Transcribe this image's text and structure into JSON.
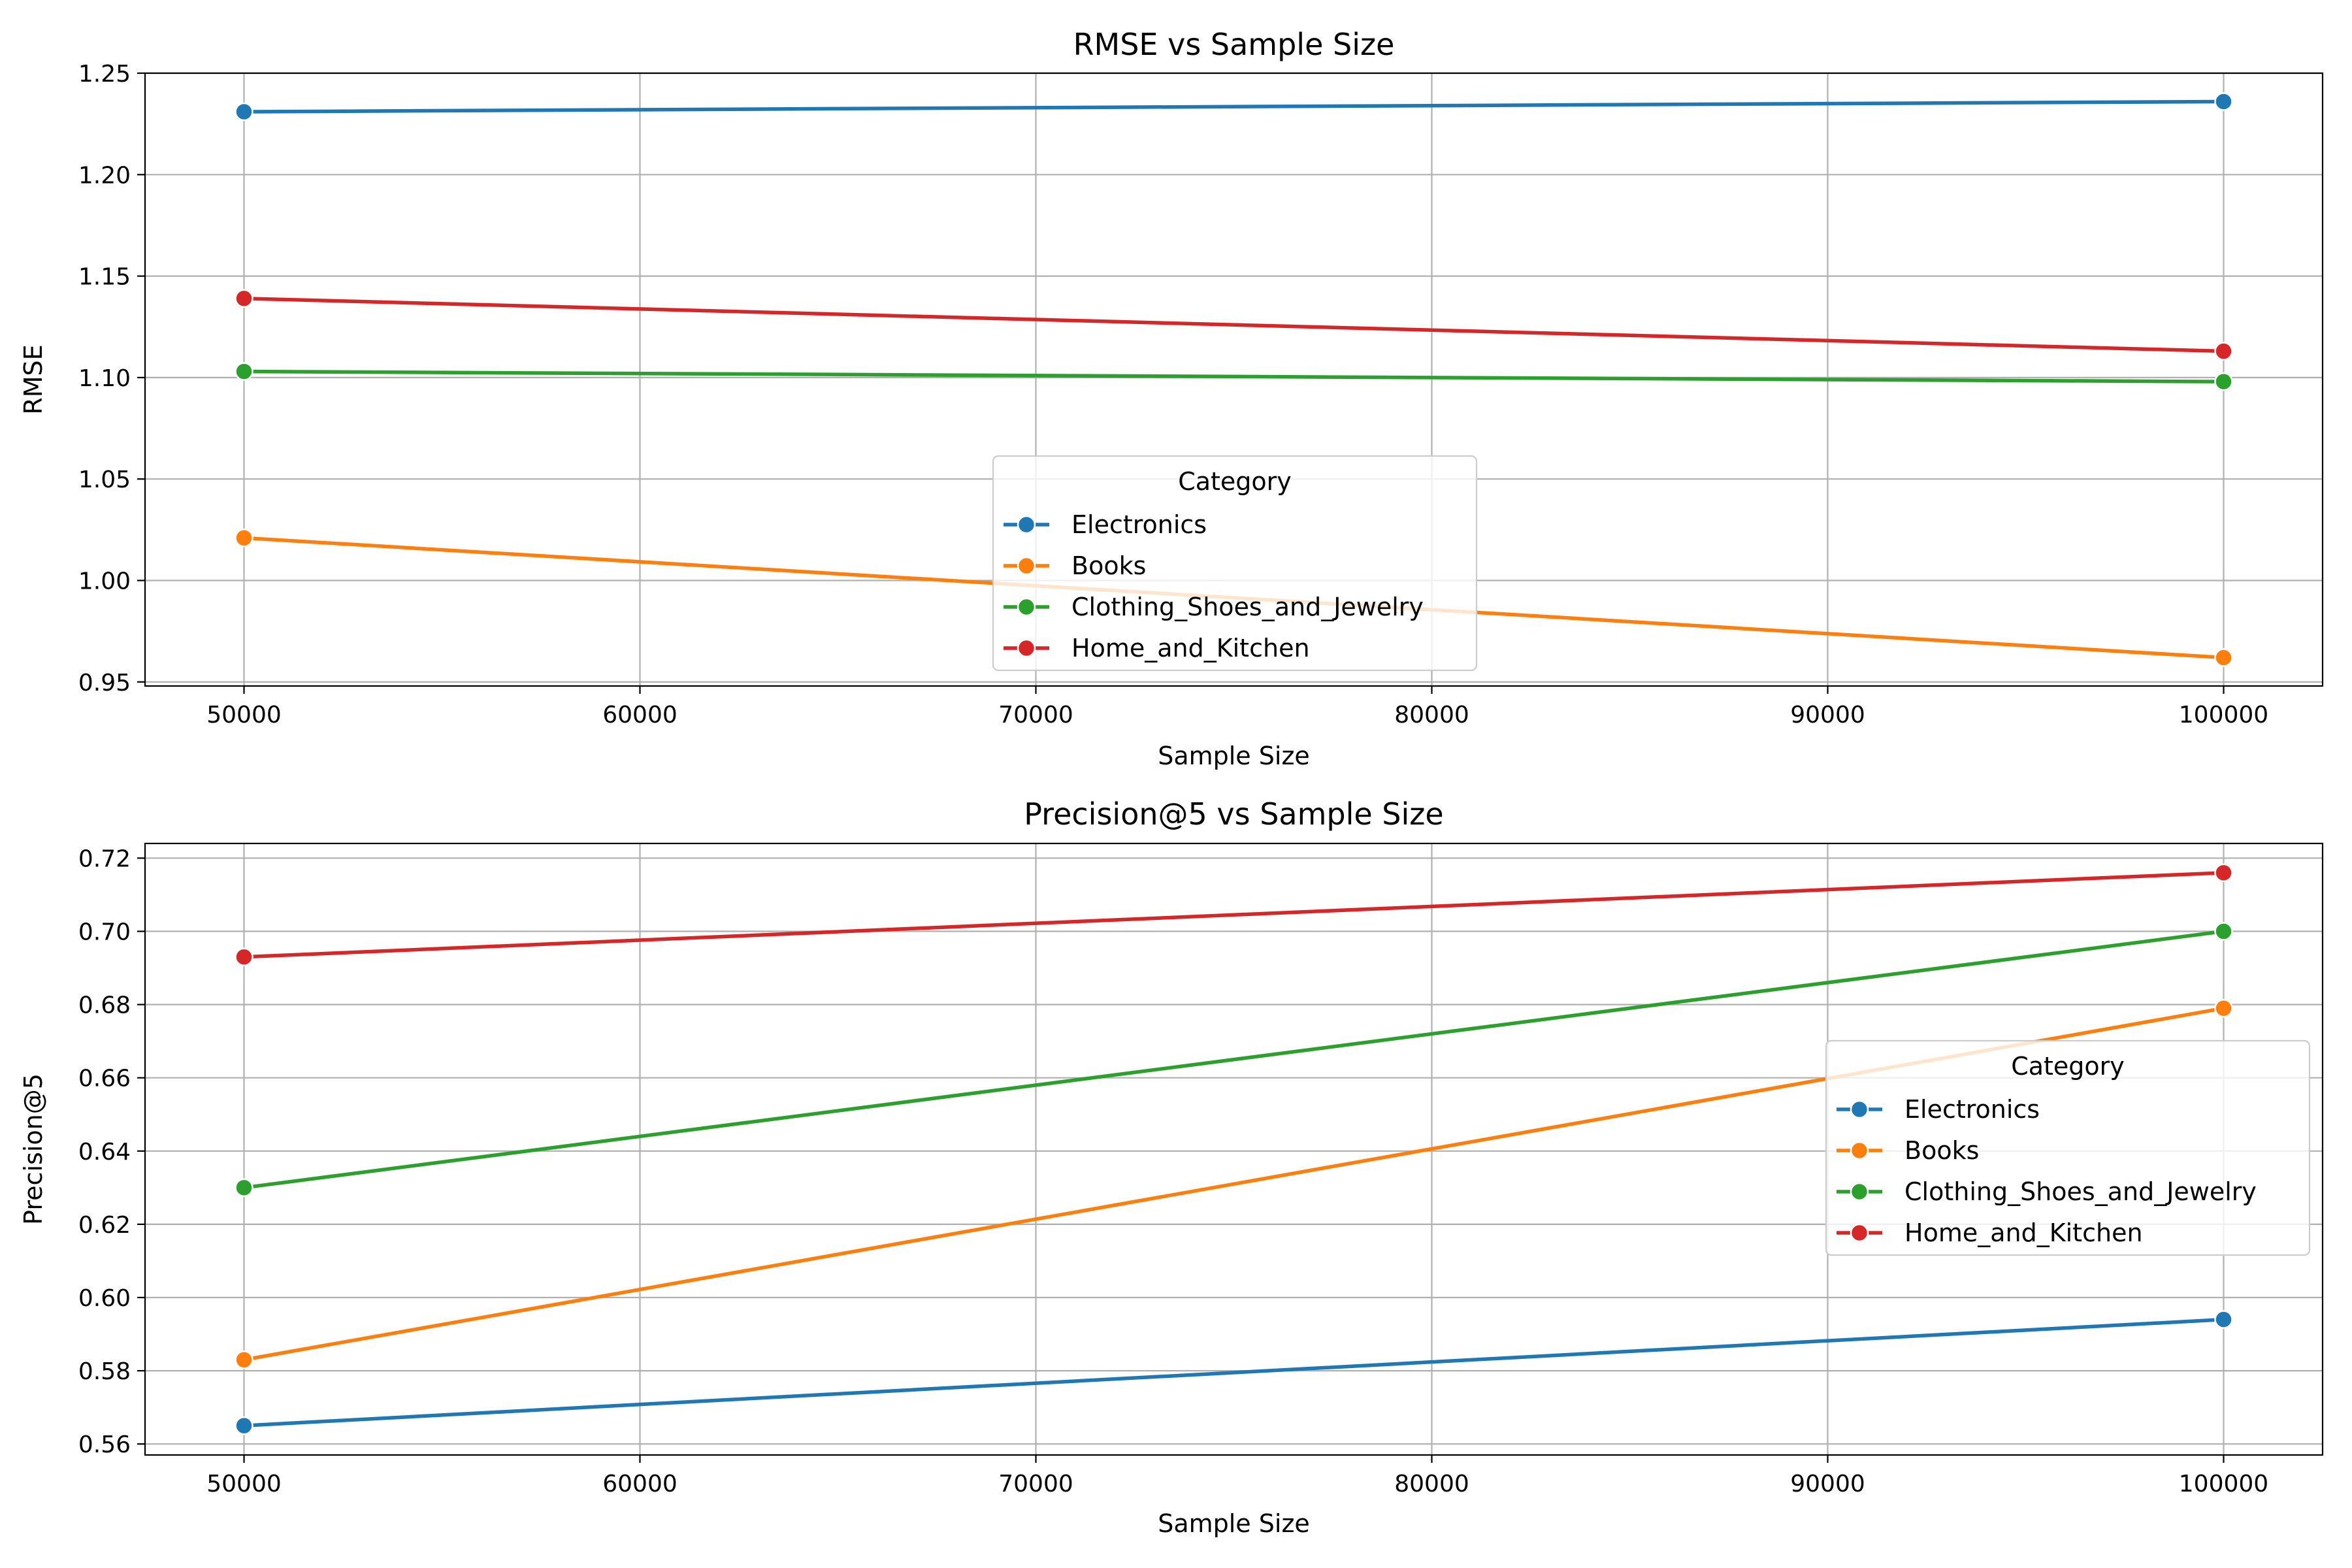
{
  "chart_data": [
    {
      "type": "line",
      "title": "RMSE vs Sample Size",
      "xlabel": "Sample Size",
      "ylabel": "RMSE",
      "xlim": [
        47500,
        102500
      ],
      "ylim": [
        0.948,
        1.25
      ],
      "xticks": [
        50000,
        60000,
        70000,
        80000,
        90000,
        100000
      ],
      "yticks": [
        0.95,
        1.0,
        1.05,
        1.1,
        1.15,
        1.2,
        1.25
      ],
      "ytick_decimals": 2,
      "grid": true,
      "legend": {
        "title": "Category",
        "placement": "lower-center"
      },
      "x": [
        50000,
        100000
      ],
      "series": [
        {
          "name": "Electronics",
          "color": "#1f77b4",
          "values": [
            1.231,
            1.236
          ]
        },
        {
          "name": "Books",
          "color": "#ff7f0e",
          "values": [
            1.021,
            0.962
          ]
        },
        {
          "name": "Clothing_Shoes_and_Jewelry",
          "color": "#2ca02c",
          "values": [
            1.103,
            1.098
          ]
        },
        {
          "name": "Home_and_Kitchen",
          "color": "#d62728",
          "values": [
            1.139,
            1.113
          ]
        }
      ]
    },
    {
      "type": "line",
      "title": "Precision@5 vs Sample Size",
      "xlabel": "Sample Size",
      "ylabel": "Precision@5",
      "xlim": [
        47500,
        102500
      ],
      "ylim": [
        0.557,
        0.724
      ],
      "xticks": [
        50000,
        60000,
        70000,
        80000,
        90000,
        100000
      ],
      "yticks": [
        0.56,
        0.58,
        0.6,
        0.62,
        0.64,
        0.66,
        0.68,
        0.7,
        0.72
      ],
      "ytick_decimals": 2,
      "grid": true,
      "legend": {
        "title": "Category",
        "placement": "center-right"
      },
      "x": [
        50000,
        100000
      ],
      "series": [
        {
          "name": "Electronics",
          "color": "#1f77b4",
          "values": [
            0.565,
            0.594
          ]
        },
        {
          "name": "Books",
          "color": "#ff7f0e",
          "values": [
            0.583,
            0.679
          ]
        },
        {
          "name": "Clothing_Shoes_and_Jewelry",
          "color": "#2ca02c",
          "values": [
            0.63,
            0.7
          ]
        },
        {
          "name": "Home_and_Kitchen",
          "color": "#d62728",
          "values": [
            0.693,
            0.716
          ]
        }
      ]
    }
  ]
}
